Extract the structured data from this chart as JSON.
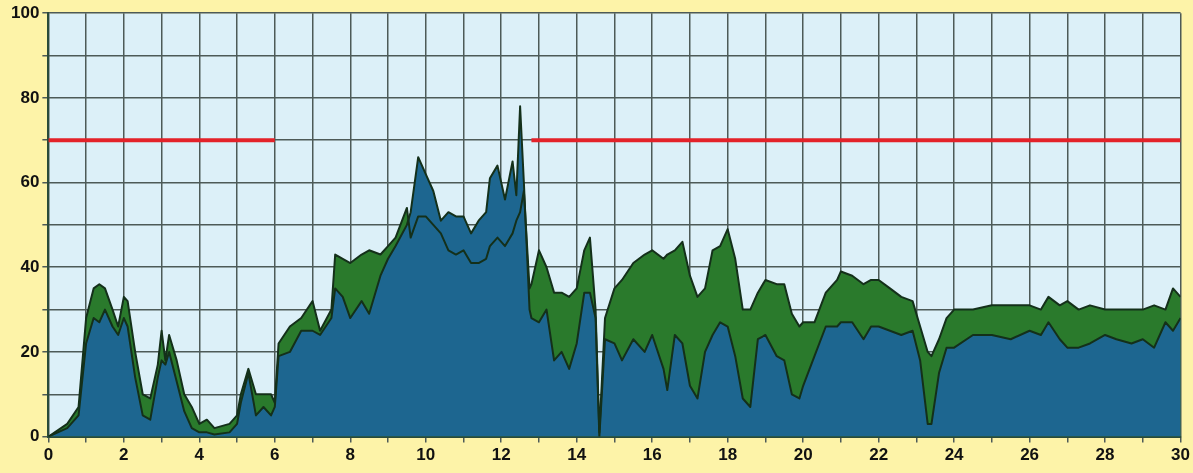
{
  "chart_data": {
    "type": "area",
    "xlim": [
      0,
      30
    ],
    "ylim": [
      0,
      100
    ],
    "xticks": [
      0,
      {
        "value": 1,
        "label": null
      },
      2,
      {
        "value": 3,
        "label": null
      },
      4,
      {
        "value": 5,
        "label": null
      },
      6,
      {
        "value": 7,
        "label": null
      },
      8,
      {
        "value": 9,
        "label": null
      },
      10,
      {
        "value": 11,
        "label": null
      },
      12,
      {
        "value": 13,
        "label": null
      },
      14,
      {
        "value": 15,
        "label": null
      },
      16,
      {
        "value": 17,
        "label": null
      },
      18,
      {
        "value": 19,
        "label": null
      },
      20,
      {
        "value": 21,
        "label": null
      },
      22,
      {
        "value": 23,
        "label": null
      },
      24,
      {
        "value": 25,
        "label": null
      },
      26,
      {
        "value": 27,
        "label": null
      },
      28,
      {
        "value": 29,
        "label": null
      },
      30
    ],
    "yticks": [
      0,
      {
        "value": 10,
        "label": null
      },
      20,
      {
        "value": 30,
        "label": null
      },
      40,
      {
        "value": 50,
        "label": null
      },
      60,
      {
        "value": 70,
        "label": null
      },
      80,
      {
        "value": 90,
        "label": null
      },
      100
    ],
    "grid": true,
    "series": [
      {
        "type": "line",
        "color": "#e32229",
        "x": [
          0,
          6,
          9.4,
          12.8,
          30
        ],
        "values": [
          70,
          70,
          null,
          70,
          70
        ]
      },
      {
        "color": "#1d6690",
        "x": [
          0,
          0.5,
          0.8,
          1.0,
          1.2,
          1.35,
          1.5,
          1.7,
          1.85,
          2.0,
          2.1,
          2.3,
          2.5,
          2.7,
          2.9,
          3.0,
          3.1,
          3.2,
          3.4,
          3.6,
          3.8,
          4.0,
          4.2,
          4.4,
          4.8,
          5.0,
          5.1,
          5.3,
          5.5,
          5.7,
          5.9,
          6.0,
          6.1,
          6.4,
          6.7,
          7.0,
          7.2,
          7.5,
          7.6,
          7.8,
          8.0,
          8.3,
          8.5,
          8.8,
          9.0,
          9.2,
          9.5,
          9.6,
          9.8,
          10.0,
          10.2,
          10.4,
          10.6,
          10.8,
          11.0,
          11.2,
          11.4,
          11.6,
          11.7,
          11.9,
          12.1,
          12.3,
          12.4,
          12.5,
          12.6,
          12.75,
          12.8,
          13.0,
          13.2,
          13.4,
          13.6,
          13.8,
          14.0,
          14.2,
          14.35,
          14.5,
          14.6,
          14.75,
          15.0,
          15.2,
          15.5,
          15.8,
          16.0,
          16.3,
          16.4,
          16.6,
          16.8,
          17.0,
          17.2,
          17.4,
          17.6,
          17.8,
          18.0,
          18.2,
          18.4,
          18.6,
          18.8,
          19.0,
          19.3,
          19.5,
          19.7,
          19.9,
          20.0,
          20.3,
          20.6,
          20.9,
          21.0,
          21.3,
          21.6,
          21.8,
          22.0,
          22.3,
          22.6,
          22.9,
          23.1,
          23.3,
          23.4,
          23.6,
          23.8,
          24.0,
          24.5,
          25.0,
          25.5,
          26.0,
          26.3,
          26.5,
          26.8,
          27.0,
          27.3,
          27.6,
          28.0,
          28.3,
          28.7,
          29.0,
          29.3,
          29.6,
          29.8,
          30.0
        ],
        "values": [
          0,
          2,
          5,
          22,
          28,
          27,
          30,
          26,
          24,
          28,
          26,
          14,
          5,
          4,
          14,
          18,
          17,
          20,
          13,
          6,
          2,
          1,
          1,
          0.5,
          1,
          3,
          8,
          15,
          5,
          7,
          5,
          7,
          19,
          20,
          25,
          25,
          24,
          28,
          35,
          33,
          28,
          32,
          29,
          38,
          42,
          45,
          50,
          53,
          66,
          62,
          58,
          51,
          53,
          52,
          52,
          48,
          51,
          53,
          61,
          64,
          56,
          65,
          57,
          78,
          60,
          30,
          28,
          27,
          30,
          18,
          20,
          16,
          22,
          34,
          34,
          28,
          0,
          23,
          22,
          18,
          23,
          20,
          24,
          16,
          11,
          24,
          22,
          12,
          9,
          20,
          24,
          27,
          26,
          19,
          9,
          7,
          23,
          24,
          19,
          18,
          10,
          9,
          12,
          19,
          26,
          26,
          27,
          27,
          23,
          26,
          26,
          25,
          24,
          25,
          18,
          3,
          3,
          15,
          21,
          21,
          24,
          24,
          23,
          25,
          24,
          27,
          23,
          21,
          21,
          22,
          24,
          23,
          22,
          23,
          21,
          27,
          25,
          28
        ]
      },
      {
        "color": "#2a7a2c",
        "x": [
          0,
          0.5,
          0.8,
          1.0,
          1.2,
          1.35,
          1.5,
          1.7,
          1.85,
          2.0,
          2.1,
          2.3,
          2.5,
          2.7,
          2.9,
          3.0,
          3.1,
          3.2,
          3.4,
          3.6,
          3.8,
          4.0,
          4.2,
          4.4,
          4.8,
          5.0,
          5.1,
          5.3,
          5.5,
          5.7,
          5.9,
          6.0,
          6.1,
          6.4,
          6.7,
          7.0,
          7.2,
          7.5,
          7.6,
          7.8,
          8.0,
          8.3,
          8.5,
          8.8,
          9.0,
          9.2,
          9.5,
          9.6,
          9.8,
          10.0,
          10.2,
          10.4,
          10.6,
          10.8,
          11.0,
          11.2,
          11.4,
          11.6,
          11.7,
          11.9,
          12.1,
          12.3,
          12.4,
          12.5,
          12.6,
          12.75,
          12.8,
          13.0,
          13.2,
          13.4,
          13.6,
          13.8,
          14.0,
          14.2,
          14.35,
          14.5,
          14.6,
          14.75,
          15.0,
          15.2,
          15.5,
          15.8,
          16.0,
          16.3,
          16.4,
          16.6,
          16.8,
          17.0,
          17.2,
          17.4,
          17.6,
          17.8,
          18.0,
          18.2,
          18.4,
          18.6,
          18.8,
          19.0,
          19.3,
          19.5,
          19.7,
          19.9,
          20.0,
          20.3,
          20.6,
          20.9,
          21.0,
          21.3,
          21.6,
          21.8,
          22.0,
          22.3,
          22.6,
          22.9,
          23.1,
          23.3,
          23.4,
          23.6,
          23.8,
          24.0,
          24.5,
          25.0,
          25.5,
          26.0,
          26.3,
          26.5,
          26.8,
          27.0,
          27.3,
          27.6,
          28.0,
          28.3,
          28.7,
          29.0,
          29.3,
          29.6,
          29.8,
          30.0
        ],
        "values": [
          0,
          3,
          7,
          28,
          35,
          36,
          35,
          30,
          26,
          33,
          32,
          20,
          10,
          9,
          17,
          25,
          18,
          24,
          18,
          10,
          7,
          3,
          4,
          2,
          3,
          5,
          10,
          16,
          10,
          10,
          10,
          8,
          22,
          26,
          28,
          32,
          25,
          30,
          43,
          42,
          41,
          43,
          44,
          43,
          45,
          47,
          54,
          47,
          52,
          52,
          50,
          48,
          44,
          43,
          44,
          41,
          41,
          42,
          45,
          47,
          45,
          48,
          51,
          53,
          58,
          35,
          36,
          44,
          40,
          34,
          34,
          33,
          35,
          44,
          47,
          30,
          1,
          28,
          35,
          37,
          41,
          43,
          44,
          42,
          43,
          44,
          46,
          38,
          33,
          35,
          44,
          45,
          49,
          42,
          30,
          30,
          34,
          37,
          36,
          36,
          29,
          26,
          27,
          27,
          34,
          37,
          39,
          38,
          36,
          37,
          37,
          35,
          33,
          32,
          26,
          20,
          19,
          23,
          28,
          30,
          30,
          31,
          31,
          31,
          30,
          33,
          31,
          32,
          30,
          31,
          30,
          30,
          30,
          30,
          31,
          30,
          35,
          33
        ]
      }
    ]
  }
}
